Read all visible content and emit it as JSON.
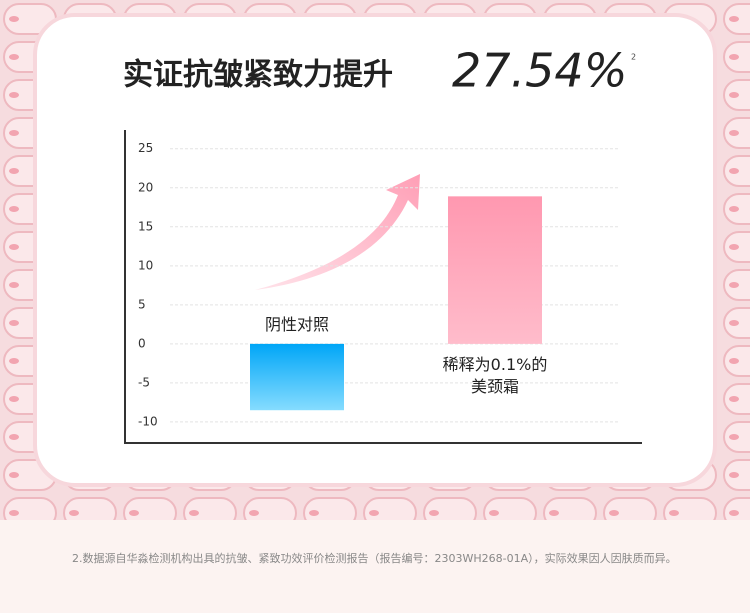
{
  "chart_data": {
    "type": "bar",
    "title": "实证抗皱紧致力提升",
    "highlight": "27.54%",
    "footnote_marker": "2",
    "categories": [
      "阴性对照",
      "稀释为0.1%的\n美颈霜"
    ],
    "values": [
      -8.5,
      18.9
    ],
    "colors": [
      "#1aaef7",
      "#ffa3b8"
    ],
    "ylim": [
      -12.7,
      27.4
    ],
    "yticks": [
      -10,
      -5,
      0,
      5,
      10,
      15,
      20,
      25
    ],
    "grid": true,
    "footnote": "2.数据源自华淼检测机构出具的抗皱、紧致功效评价检测报告（报告编号：2303WH268-01A），实际效果因人因肤质而异。"
  }
}
